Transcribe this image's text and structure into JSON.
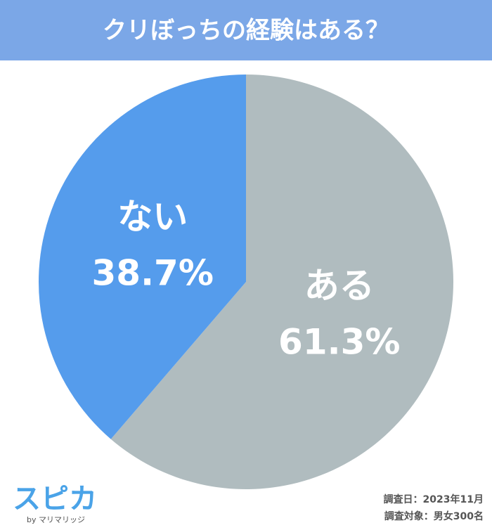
{
  "chart_data": {
    "type": "pie",
    "title": "クリぼっちの経験はある？",
    "categories": [
      "ある",
      "ない"
    ],
    "values": [
      61.3,
      38.7
    ],
    "value_labels": [
      "61.3%",
      "38.7%"
    ],
    "colors": [
      "#b0bcbf",
      "#559cec"
    ],
    "notes": [
      "調査日：2023年11月",
      "調査対象：男女300名"
    ],
    "logo": {
      "name": "スピカ",
      "by": "by マリマリッジ"
    }
  }
}
